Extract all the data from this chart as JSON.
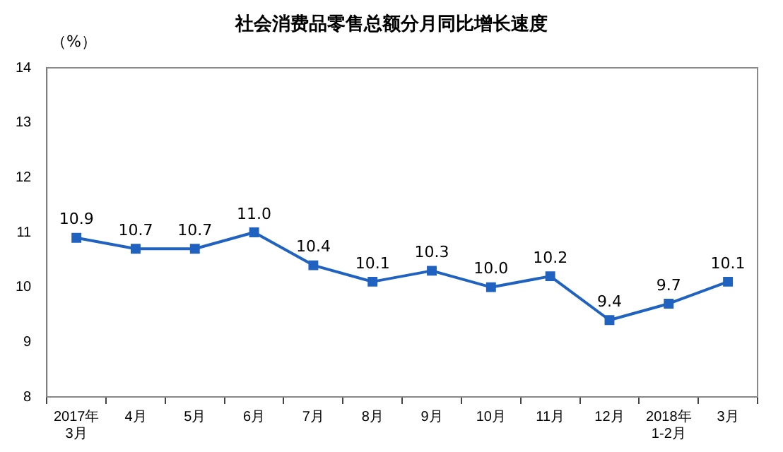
{
  "chart_data": {
    "type": "line",
    "title": "社会消费品零售总额分月同比增长速度",
    "ylabel": "（%）",
    "categories": [
      "2017年\n3月",
      "4月",
      "5月",
      "6月",
      "7月",
      "8月",
      "9月",
      "10月",
      "11月",
      "12月",
      "2018年\n1-2月",
      "3月"
    ],
    "series": [
      {
        "color": "#1f62c0",
        "values": [
          10.9,
          10.7,
          10.7,
          11.0,
          10.4,
          10.1,
          10.3,
          10.0,
          10.2,
          9.4,
          9.7,
          10.1
        ],
        "value_labels": [
          "10.9",
          "10.7",
          "10.7",
          "11.0",
          "10.4",
          "10.1",
          "10.3",
          "10.0",
          "10.2",
          "9.4",
          "9.7",
          "10.1"
        ]
      }
    ],
    "ylim": [
      8,
      14
    ],
    "yticks": [
      8,
      9,
      10,
      11,
      12,
      13,
      14
    ],
    "grid": false,
    "legend": false,
    "marker": "square",
    "line_style": "solid"
  }
}
